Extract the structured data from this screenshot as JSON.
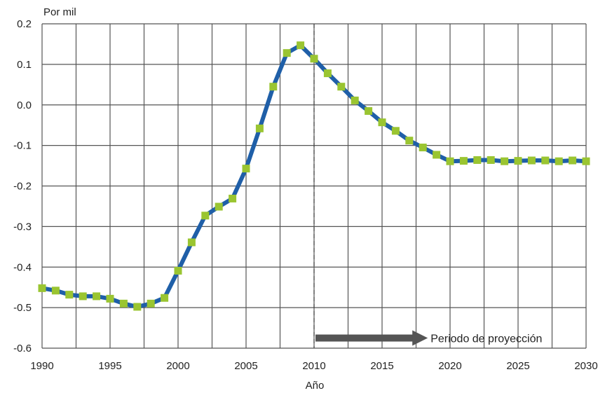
{
  "chart_data": {
    "type": "line",
    "title": "",
    "ylabel": "Por mil",
    "xlabel": "Año",
    "xlim": [
      1990,
      2030
    ],
    "ylim": [
      -0.6,
      0.2
    ],
    "x_ticks": [
      1990,
      1995,
      2000,
      2005,
      2010,
      2015,
      2020,
      2025,
      2030
    ],
    "y_ticks": [
      0.2,
      0.1,
      0.0,
      -0.1,
      -0.2,
      -0.3,
      -0.4,
      -0.5,
      -0.6
    ],
    "y_tick_labels": [
      "0.2",
      "0.1",
      "0.0",
      "-0.1",
      "-0.2",
      "-0.3",
      "-0.4",
      "-0.5",
      "-0.6"
    ],
    "x_tick_labels": [
      "1990",
      "1995",
      "2000",
      "2005",
      "2010",
      "2015",
      "2020",
      "2025",
      "2030"
    ],
    "grid": true,
    "colors": {
      "line": "#1f5fa8",
      "marker": "#9ac531",
      "grid": "#555555",
      "arrow": "#555555"
    },
    "series": [
      {
        "x": [
          1990,
          1991,
          1992,
          1993,
          1994,
          1995,
          1996,
          1997,
          1998,
          1999,
          2000,
          2001,
          2002,
          2003,
          2004,
          2005,
          2006,
          2007,
          2008,
          2009,
          2010,
          2011,
          2012,
          2013,
          2014,
          2015,
          2016,
          2017,
          2018,
          2019,
          2020,
          2021,
          2022,
          2023,
          2024,
          2025,
          2026,
          2027,
          2028,
          2029,
          2030
        ],
        "values": [
          -0.452,
          -0.458,
          -0.468,
          -0.472,
          -0.472,
          -0.478,
          -0.49,
          -0.498,
          -0.49,
          -0.476,
          -0.409,
          -0.339,
          -0.273,
          -0.251,
          -0.231,
          -0.157,
          -0.058,
          0.045,
          0.128,
          0.147,
          0.114,
          0.078,
          0.045,
          0.011,
          -0.015,
          -0.043,
          -0.064,
          -0.088,
          -0.105,
          -0.123,
          -0.139,
          -0.138,
          -0.136,
          -0.136,
          -0.139,
          -0.138,
          -0.137,
          -0.137,
          -0.139,
          -0.137,
          -0.139
        ]
      }
    ],
    "projection_start": 2010,
    "annotation": {
      "text": "Periodo de proyección",
      "arrow_from": 2010,
      "arrow_to": 2018,
      "y": -0.575
    }
  }
}
